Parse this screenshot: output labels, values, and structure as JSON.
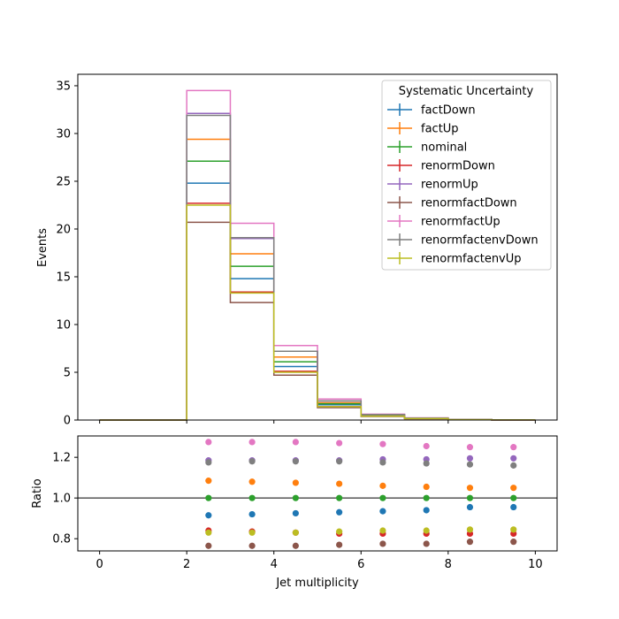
{
  "chart_data": [
    {
      "type": "line",
      "subtype": "step-histogram",
      "ylabel": "Events",
      "xlim": [
        -0.5,
        10.5
      ],
      "ylim": [
        0,
        36.2
      ],
      "xticks": [
        0,
        2,
        4,
        6,
        8,
        10
      ],
      "yticks": [
        0,
        5,
        10,
        15,
        20,
        25,
        30,
        35
      ],
      "bin_edges": [
        0,
        1,
        2,
        3,
        4,
        5,
        6,
        7,
        8,
        9,
        10
      ],
      "grid": false,
      "legend": {
        "title": "Systematic Uncertainty",
        "placement": "top-right"
      },
      "series": [
        {
          "name": "factDown",
          "color": "#1f77b4",
          "values": [
            0,
            0,
            24.8,
            14.8,
            5.6,
            1.6,
            0.45,
            0.17,
            0.05,
            0.01
          ]
        },
        {
          "name": "factUp",
          "color": "#ff7f0e",
          "values": [
            0,
            0,
            29.4,
            17.4,
            6.6,
            1.8,
            0.51,
            0.19,
            0.05,
            0.01
          ]
        },
        {
          "name": "nominal",
          "color": "#2ca02c",
          "values": [
            0,
            0,
            27.1,
            16.1,
            6.1,
            1.7,
            0.48,
            0.18,
            0.05,
            0.01
          ]
        },
        {
          "name": "renormDown",
          "color": "#d62728",
          "values": [
            0,
            0,
            22.7,
            13.4,
            5.1,
            1.4,
            0.4,
            0.15,
            0.04,
            0.01
          ]
        },
        {
          "name": "renormUp",
          "color": "#9467bd",
          "values": [
            0,
            0,
            32.1,
            19.0,
            7.2,
            2.0,
            0.57,
            0.21,
            0.06,
            0.01
          ]
        },
        {
          "name": "renormfactDown",
          "color": "#8c564b",
          "values": [
            0,
            0,
            20.7,
            12.3,
            4.7,
            1.3,
            0.37,
            0.14,
            0.04,
            0.01
          ]
        },
        {
          "name": "renormfactUp",
          "color": "#e377c2",
          "values": [
            0,
            0,
            34.5,
            20.6,
            7.8,
            2.2,
            0.61,
            0.23,
            0.06,
            0.01
          ]
        },
        {
          "name": "renormfactenvDown",
          "color": "#7f7f7f",
          "values": [
            0,
            0,
            31.9,
            19.1,
            7.2,
            2.0,
            0.57,
            0.21,
            0.06,
            0.01
          ]
        },
        {
          "name": "renormfactenvUp",
          "color": "#bcbd22",
          "values": [
            0,
            0,
            22.5,
            13.3,
            5.0,
            1.4,
            0.4,
            0.15,
            0.04,
            0.01
          ]
        }
      ]
    },
    {
      "type": "scatter",
      "xlabel": "Jet multiplicity",
      "ylabel": "Ratio",
      "xlim": [
        -0.5,
        10.5
      ],
      "ylim": [
        0.74,
        1.305
      ],
      "xticks": [
        0,
        2,
        4,
        6,
        8,
        10
      ],
      "yticks": [
        0.8,
        1.0,
        1.2
      ],
      "ytick_labels": [
        "0.8",
        "1.0",
        "1.2"
      ],
      "reference_line": 1.0,
      "grid": false,
      "x": [
        2.5,
        3.5,
        4.5,
        5.5,
        6.5,
        7.5,
        8.5,
        9.5
      ],
      "series": [
        {
          "name": "factDown",
          "color": "#1f77b4",
          "values": [
            0.915,
            0.92,
            0.925,
            0.93,
            0.935,
            0.94,
            0.955,
            0.955
          ]
        },
        {
          "name": "factUp",
          "color": "#ff7f0e",
          "values": [
            1.085,
            1.08,
            1.075,
            1.07,
            1.06,
            1.055,
            1.05,
            1.05
          ]
        },
        {
          "name": "nominal",
          "color": "#2ca02c",
          "values": [
            1.0,
            1.0,
            1.0,
            1.0,
            1.0,
            1.0,
            1.0,
            1.0
          ]
        },
        {
          "name": "renormDown",
          "color": "#d62728",
          "values": [
            0.84,
            0.835,
            0.83,
            0.825,
            0.825,
            0.825,
            0.825,
            0.825
          ]
        },
        {
          "name": "renormUp",
          "color": "#9467bd",
          "values": [
            1.185,
            1.185,
            1.185,
            1.185,
            1.19,
            1.19,
            1.195,
            1.195
          ]
        },
        {
          "name": "renormfactDown",
          "color": "#8c564b",
          "values": [
            0.765,
            0.765,
            0.765,
            0.77,
            0.775,
            0.775,
            0.785,
            0.785
          ]
        },
        {
          "name": "renormfactUp",
          "color": "#e377c2",
          "values": [
            1.275,
            1.275,
            1.275,
            1.27,
            1.265,
            1.255,
            1.25,
            1.25
          ]
        },
        {
          "name": "renormfactenvDown",
          "color": "#7f7f7f",
          "values": [
            1.175,
            1.18,
            1.18,
            1.18,
            1.175,
            1.17,
            1.165,
            1.16
          ]
        },
        {
          "name": "renormfactenvUp",
          "color": "#bcbd22",
          "values": [
            0.83,
            0.83,
            0.83,
            0.835,
            0.84,
            0.84,
            0.845,
            0.845
          ]
        }
      ]
    }
  ]
}
